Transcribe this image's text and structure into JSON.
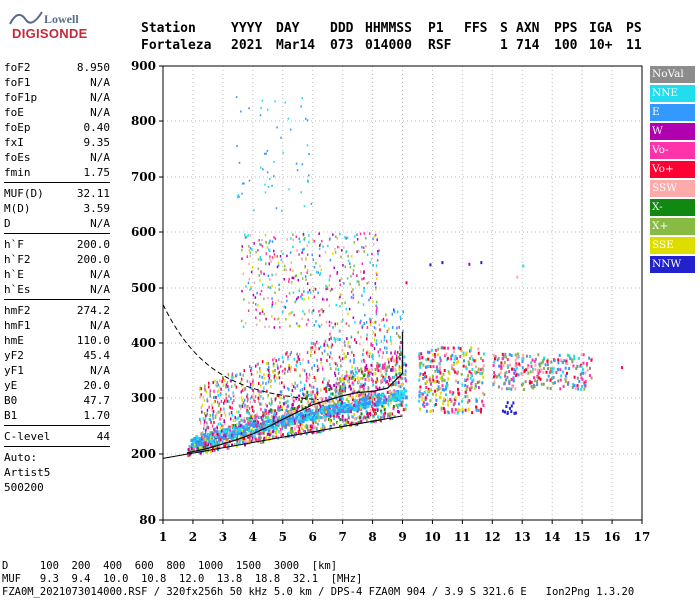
{
  "logo": {
    "line1": "Lowell",
    "line2": "DIGISONDE"
  },
  "header": {
    "row1": [
      "Station",
      "YYYY",
      "DAY",
      "DDD",
      "HHMMSS",
      "P1",
      "FFS",
      "S",
      "AXN",
      "PPS",
      "IGA",
      "PS"
    ],
    "row2": [
      "Fortaleza",
      "2021",
      "Mar14",
      "073",
      "014000",
      "RSF",
      "",
      "1",
      "714",
      "100",
      "10+",
      "11"
    ]
  },
  "params": [
    {
      "label": "foF2",
      "value": "8.950"
    },
    {
      "label": "foF1",
      "value": "N/A"
    },
    {
      "label": "foF1p",
      "value": "N/A"
    },
    {
      "label": "foE",
      "value": "N/A"
    },
    {
      "label": "foEp",
      "value": "0.40"
    },
    {
      "label": "fxI",
      "value": "9.35"
    },
    {
      "label": "foEs",
      "value": "N/A"
    },
    {
      "label": "fmin",
      "value": "1.75"
    },
    {
      "sep": true
    },
    {
      "label": "MUF(D)",
      "value": "32.11"
    },
    {
      "label": "M(D)",
      "value": "3.59"
    },
    {
      "label": "D",
      "value": "N/A"
    },
    {
      "sep": true
    },
    {
      "label": "h`F",
      "value": "200.0"
    },
    {
      "label": "h`F2",
      "value": "200.0"
    },
    {
      "label": "h`E",
      "value": "N/A"
    },
    {
      "label": "h`Es",
      "value": "N/A"
    },
    {
      "sep": true
    },
    {
      "label": "hmF2",
      "value": "274.2"
    },
    {
      "label": "hmF1",
      "value": "N/A"
    },
    {
      "label": "hmE",
      "value": "110.0"
    },
    {
      "label": "yF2",
      "value": "45.4"
    },
    {
      "label": "yF1",
      "value": "N/A"
    },
    {
      "label": "yE",
      "value": "20.0"
    },
    {
      "label": "B0",
      "value": "47.7"
    },
    {
      "label": "B1",
      "value": "1.70"
    },
    {
      "sep": true
    },
    {
      "label": "C-level",
      "value": "44"
    },
    {
      "sep": true
    },
    {
      "text": "Auto:"
    },
    {
      "text": "Artist5"
    },
    {
      "text": "500200"
    }
  ],
  "legend": [
    {
      "label": "NoVal",
      "color": "#8c8c8c"
    },
    {
      "label": "NNE",
      "color": "#22ddee"
    },
    {
      "label": "E",
      "color": "#3399ff"
    },
    {
      "label": "W",
      "color": "#b000b0"
    },
    {
      "label": "Vo-",
      "color": "#ff33aa"
    },
    {
      "label": "Vo+",
      "color": "#ff0033"
    },
    {
      "label": "SSW",
      "color": "#ffaaaa"
    },
    {
      "label": "X-",
      "color": "#118811"
    },
    {
      "label": "X+",
      "color": "#88bb44"
    },
    {
      "label": "SSE",
      "color": "#dddd00"
    },
    {
      "label": "NNW",
      "color": "#2222cc"
    }
  ],
  "chart_data": {
    "type": "scatter",
    "xlim": [
      1,
      17
    ],
    "ylim": [
      80,
      900
    ],
    "x_ticks": [
      "1",
      "2",
      "3",
      "4",
      "5",
      "6",
      "7",
      "8",
      "9",
      "10",
      "11",
      "12",
      "13",
      "14",
      "15",
      "16",
      "17"
    ],
    "y_ticks": [
      "80",
      "200",
      "300",
      "400",
      "500",
      "600",
      "700",
      "800",
      "900"
    ],
    "grid": true,
    "series_note_colors": "echo trace colors follow legend"
  },
  "bottom": {
    "line1": "D     100  200  400  600  800  1000  1500  3000  [km]",
    "line2": "MUF   9.3  9.4  10.0  10.8  12.0  13.8  18.8  32.1  [MHz]",
    "line3": "FZA0M_2021073014000.RSF / 320fx256h 50 kHz 5.0 km / DPS-4 FZA0M 904 / 3.9 S 321.6 E   Ion2Png 1.3.20"
  }
}
